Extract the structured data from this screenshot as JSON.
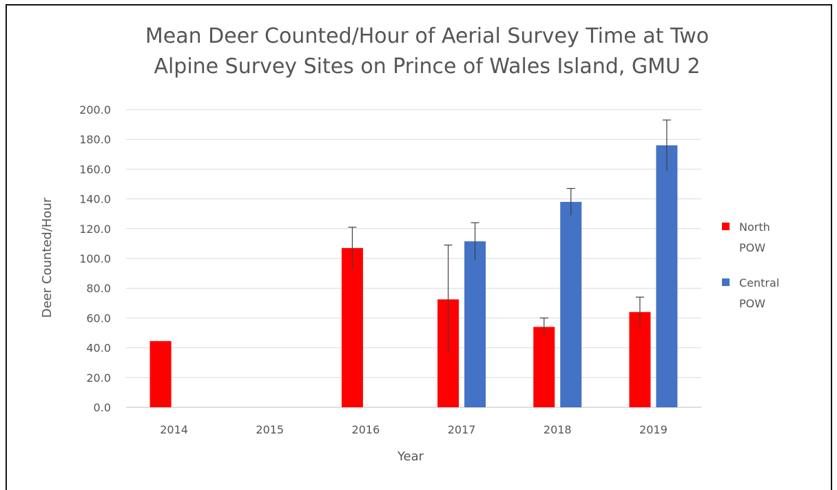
{
  "chart_data": {
    "type": "bar",
    "title_lines": [
      "Mean Deer Counted/Hour of Aerial Survey Time at Two",
      "Alpine Survey Sites on Prince of Wales Island, GMU 2"
    ],
    "xlabel": "Year",
    "ylabel": "Deer Counted/Hour",
    "ylim": [
      0,
      200
    ],
    "yticks": [
      "0.0",
      "20.0",
      "40.0",
      "60.0",
      "80.0",
      "100.0",
      "120.0",
      "140.0",
      "160.0",
      "180.0",
      "200.0"
    ],
    "grid": true,
    "legend_position": "right",
    "categories": [
      "2014",
      "2015",
      "2016",
      "2017",
      "2018",
      "2019"
    ],
    "series": [
      {
        "name_lines": [
          "North",
          "POW"
        ],
        "color": "#ff0000",
        "values": [
          44.5,
          null,
          107,
          72.5,
          54,
          64
        ],
        "error_upper": [
          null,
          null,
          121,
          109,
          60,
          74
        ]
      },
      {
        "name_lines": [
          "Central",
          "POW"
        ],
        "color": "#4472c4",
        "values": [
          null,
          null,
          null,
          111.5,
          138,
          176
        ],
        "error_upper": [
          null,
          null,
          null,
          124,
          147,
          193
        ]
      }
    ]
  }
}
